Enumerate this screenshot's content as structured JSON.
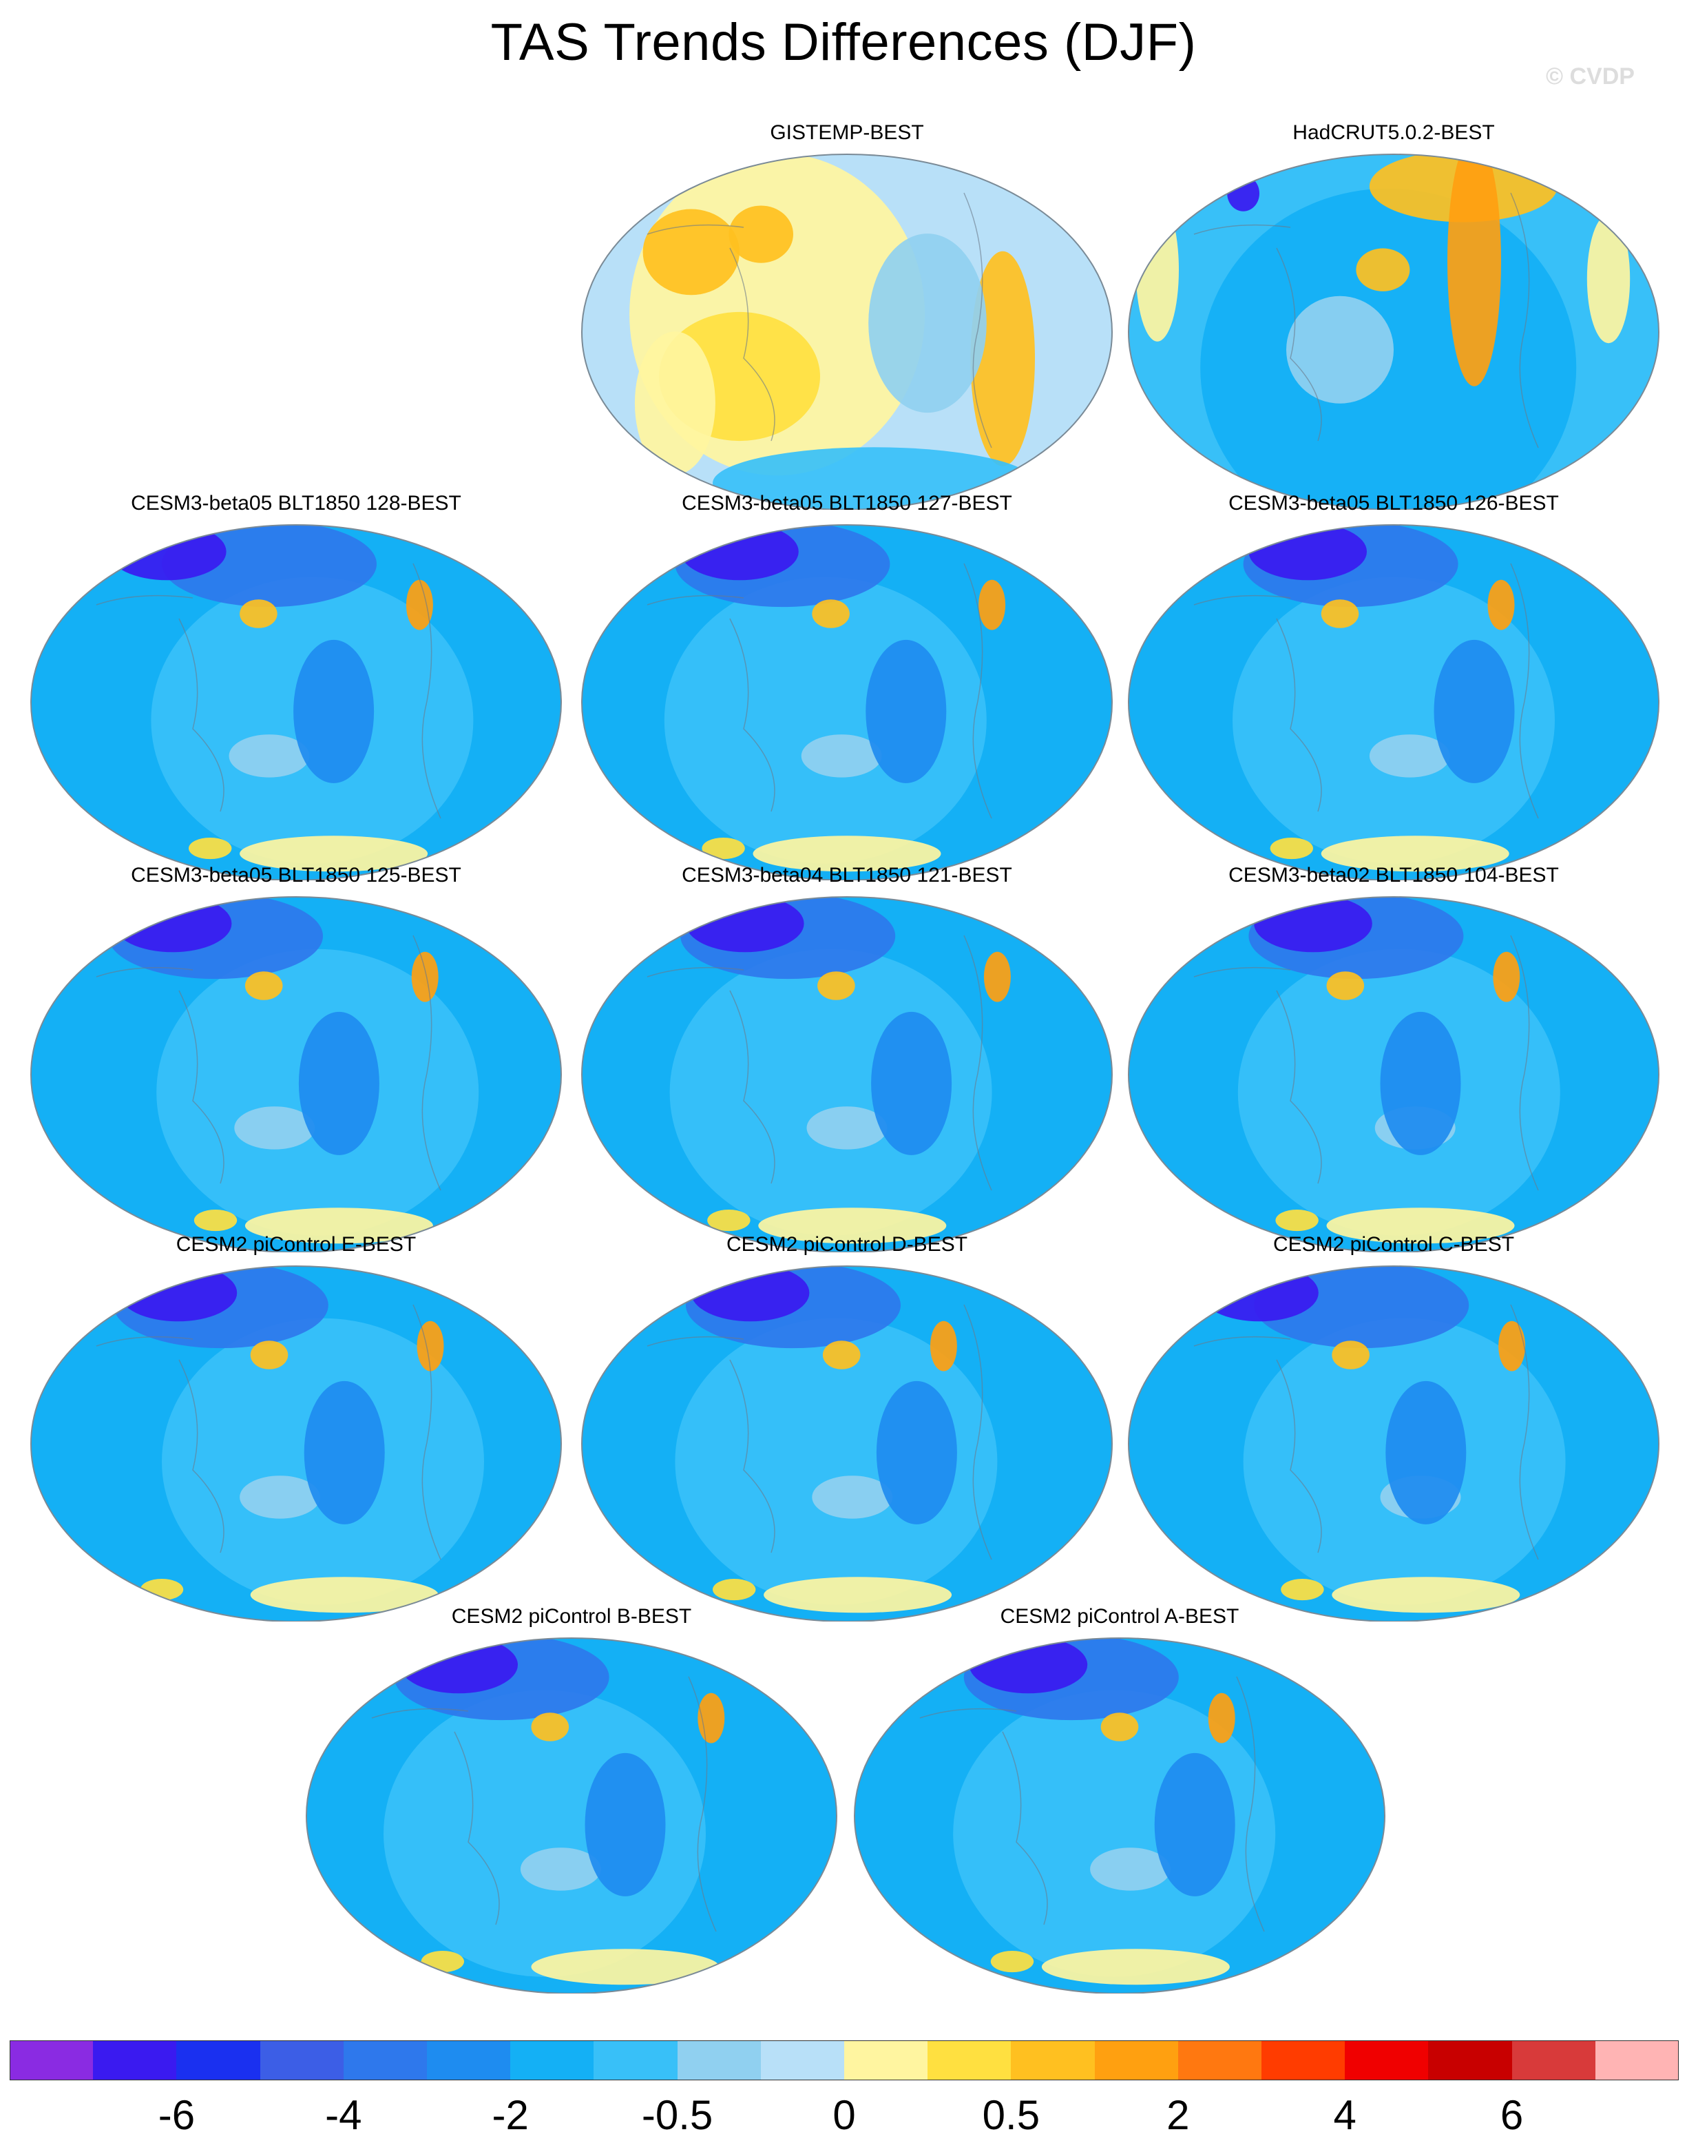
{
  "title": "TAS Trends Differences (DJF)",
  "watermark": "© CVDP",
  "panels": [
    {
      "title": "GISTEMP-BEST",
      "theme": "warm"
    },
    {
      "title": "HadCRUT5.0.2-BEST",
      "theme": "mixed"
    },
    {
      "title": "CESM3-beta05 BLT1850 128-BEST",
      "theme": "cold"
    },
    {
      "title": "CESM3-beta05 BLT1850 127-BEST",
      "theme": "cold"
    },
    {
      "title": "CESM3-beta05 BLT1850 126-BEST",
      "theme": "cold"
    },
    {
      "title": "CESM3-beta05 BLT1850 125-BEST",
      "theme": "cold"
    },
    {
      "title": "CESM3-beta04 BLT1850 121-BEST",
      "theme": "cold"
    },
    {
      "title": "CESM3-beta02 BLT1850 104-BEST",
      "theme": "cold"
    },
    {
      "title": "CESM2 piControl E-BEST",
      "theme": "cold"
    },
    {
      "title": "CESM2 piControl D-BEST",
      "theme": "cold"
    },
    {
      "title": "CESM2 piControl C-BEST",
      "theme": "cold"
    },
    {
      "title": "CESM2 piControl B-BEST",
      "theme": "cold"
    },
    {
      "title": "CESM2 piControl A-BEST",
      "theme": "cold"
    }
  ],
  "colorbar": {
    "colors": [
      "#8a2be2",
      "#3a1af0",
      "#1a30f0",
      "#3c5ee6",
      "#2e78ec",
      "#1e8cf0",
      "#14b0f5",
      "#38c0f8",
      "#90d0f0",
      "#b8e0f8",
      "#fff5a0",
      "#ffe040",
      "#ffc020",
      "#ffa010",
      "#ff7810",
      "#ff3c00",
      "#f00000",
      "#c80000",
      "#d83a3a",
      "#ffb4b4"
    ],
    "labels": [
      "-6",
      "-4",
      "-2",
      "-0.5",
      "0",
      "0.5",
      "2",
      "4",
      "6"
    ]
  }
}
